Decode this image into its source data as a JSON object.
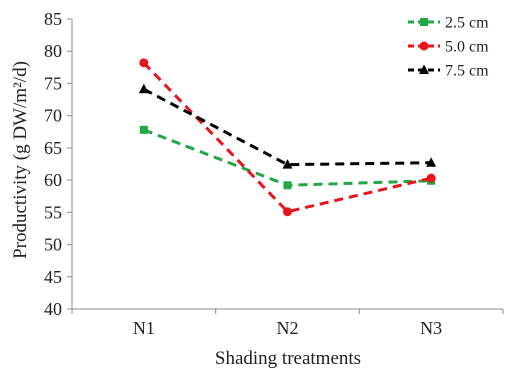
{
  "chart_data": {
    "type": "line",
    "categories": [
      "N1",
      "N2",
      "N3"
    ],
    "xlabel": "Shading treatments",
    "ylabel": "Productivity (g DW/m²/d)",
    "ylim": [
      40,
      85
    ],
    "yticks": [
      40,
      45,
      50,
      55,
      60,
      65,
      70,
      75,
      80,
      85
    ],
    "grid": false,
    "legend_position": "top-right",
    "series": [
      {
        "name": "2.5 cm",
        "values": [
          67.8,
          59.2,
          59.9
        ],
        "color": "#22a745",
        "marker": "square",
        "line_style": "dashed"
      },
      {
        "name": "5.0 cm",
        "values": [
          78.2,
          55.1,
          60.3
        ],
        "color": "#e8131b",
        "marker": "circle",
        "line_style": "dashed"
      },
      {
        "name": "7.5 cm",
        "values": [
          74.1,
          62.4,
          62.7
        ],
        "color": "#000000",
        "marker": "triangle",
        "line_style": "dashed"
      }
    ]
  }
}
